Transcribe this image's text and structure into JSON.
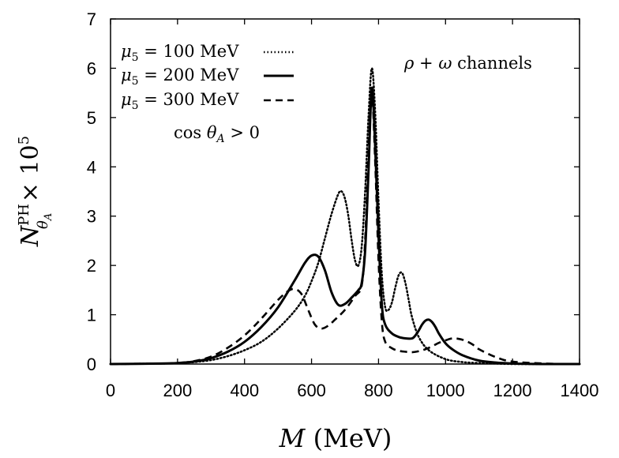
{
  "chart_data": {
    "type": "line",
    "title": "",
    "xlabel": "M (MeV)",
    "ylabel": "N^PH_θA × 10^5",
    "xlim": [
      0,
      1400
    ],
    "ylim": [
      0,
      7
    ],
    "xticks": [
      0,
      200,
      400,
      600,
      800,
      1000,
      1200,
      1400
    ],
    "yticks": [
      0,
      1,
      2,
      3,
      4,
      5,
      6,
      7
    ],
    "grid": false,
    "legend_position": "top-left",
    "annotations": [
      "ρ + ω channels",
      "cos θA > 0"
    ],
    "series": [
      {
        "name": "μ5 = 100 MeV",
        "style": "dotted",
        "x": [
          0,
          150,
          200,
          250,
          300,
          350,
          400,
          450,
          500,
          550,
          580,
          600,
          620,
          640,
          660,
          680,
          690,
          700,
          710,
          720,
          730,
          740,
          750,
          760,
          770,
          780,
          790,
          800,
          810,
          820,
          830,
          840,
          850,
          860,
          870,
          880,
          890,
          900,
          920,
          950,
          1000,
          1050,
          1100,
          1150,
          1200,
          1300,
          1400
        ],
        "y": [
          0,
          0.01,
          0.02,
          0.04,
          0.08,
          0.16,
          0.28,
          0.45,
          0.72,
          1.08,
          1.38,
          1.68,
          2.05,
          2.55,
          3.05,
          3.45,
          3.5,
          3.35,
          3.0,
          2.5,
          2.1,
          2.0,
          2.4,
          3.5,
          5.0,
          6.0,
          5.1,
          3.3,
          1.8,
          1.15,
          1.1,
          1.25,
          1.55,
          1.8,
          1.85,
          1.65,
          1.3,
          0.95,
          0.55,
          0.28,
          0.1,
          0.04,
          0.02,
          0.01,
          0,
          0,
          0
        ]
      },
      {
        "name": "μ5 = 200 MeV",
        "style": "solid",
        "x": [
          0,
          150,
          200,
          250,
          300,
          350,
          400,
          450,
          500,
          550,
          580,
          600,
          620,
          640,
          660,
          680,
          700,
          720,
          740,
          750,
          760,
          770,
          780,
          790,
          800,
          810,
          820,
          840,
          860,
          880,
          900,
          910,
          920,
          930,
          940,
          950,
          960,
          970,
          980,
          1000,
          1020,
          1050,
          1100,
          1150,
          1200,
          1300,
          1400
        ],
        "y": [
          0,
          0.01,
          0.02,
          0.05,
          0.12,
          0.25,
          0.45,
          0.75,
          1.15,
          1.7,
          2.05,
          2.2,
          2.18,
          1.9,
          1.45,
          1.2,
          1.22,
          1.35,
          1.5,
          1.65,
          2.3,
          3.9,
          5.6,
          4.4,
          2.6,
          1.2,
          0.8,
          0.62,
          0.55,
          0.52,
          0.52,
          0.58,
          0.68,
          0.8,
          0.88,
          0.9,
          0.85,
          0.75,
          0.62,
          0.42,
          0.3,
          0.18,
          0.07,
          0.03,
          0.01,
          0,
          0
        ]
      },
      {
        "name": "μ5 = 300 MeV",
        "style": "dashed",
        "x": [
          0,
          150,
          200,
          250,
          300,
          350,
          400,
          450,
          500,
          530,
          550,
          570,
          590,
          610,
          630,
          650,
          670,
          700,
          730,
          750,
          760,
          770,
          780,
          790,
          800,
          810,
          820,
          840,
          860,
          880,
          900,
          920,
          940,
          960,
          980,
          1000,
          1020,
          1040,
          1060,
          1080,
          1100,
          1150,
          1200,
          1300,
          1400
        ],
        "y": [
          0,
          0.01,
          0.02,
          0.06,
          0.15,
          0.33,
          0.58,
          0.92,
          1.3,
          1.48,
          1.52,
          1.42,
          1.1,
          0.8,
          0.72,
          0.78,
          0.9,
          1.1,
          1.38,
          1.6,
          2.5,
          4.3,
          5.5,
          4.1,
          2.1,
          0.85,
          0.45,
          0.32,
          0.27,
          0.25,
          0.24,
          0.26,
          0.3,
          0.36,
          0.43,
          0.48,
          0.52,
          0.51,
          0.47,
          0.4,
          0.3,
          0.14,
          0.05,
          0.01,
          0
        ]
      }
    ]
  },
  "legend": {
    "entries": [
      {
        "mu": "μ",
        "sub": "5",
        "rest": " = 100 MeV"
      },
      {
        "mu": "μ",
        "sub": "5",
        "rest": " = 200 MeV"
      },
      {
        "mu": "μ",
        "sub": "5",
        "rest": " = 300 MeV"
      }
    ]
  },
  "annot": {
    "channel": {
      "rho": "ρ",
      "mid": " + ",
      "omega": "ω",
      "rest": " channels"
    },
    "condition": {
      "cos": "cos ",
      "theta": "θ",
      "sub": "A",
      "rest": " > 0"
    }
  },
  "axis_labels": {
    "x": {
      "var": "M",
      "unit": " (MeV)"
    },
    "y": {
      "N": "N",
      "sup": "PH",
      "theta": "θ",
      "subsub": "A",
      "times": " × 10",
      "exp": "5"
    }
  },
  "colors": {
    "line": "#000000",
    "background": "#ffffff"
  }
}
